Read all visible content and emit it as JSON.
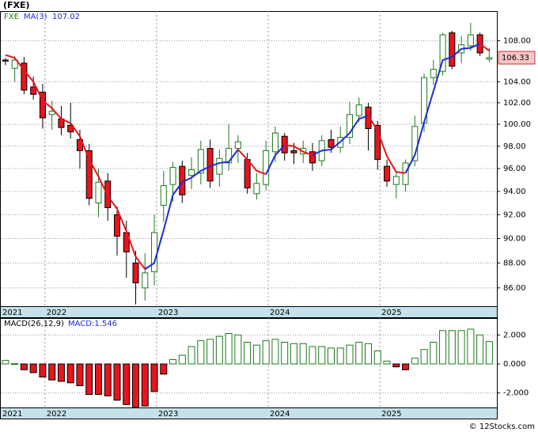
{
  "title": "(FXE)",
  "footer": "© 12Stocks.com",
  "chart_data": [
    {
      "type": "candlestick",
      "legend": {
        "symbol": "FXE",
        "ma_name": "MA(3)",
        "ma_value": 107.02
      },
      "categories": [
        "2021",
        null,
        null,
        null,
        null,
        "2022",
        null,
        null,
        null,
        null,
        null,
        null,
        null,
        null,
        null,
        null,
        null,
        "2023",
        null,
        null,
        null,
        null,
        null,
        null,
        null,
        null,
        null,
        null,
        null,
        "2024",
        null,
        null,
        null,
        null,
        null,
        null,
        null,
        null,
        null,
        null,
        null,
        "2025",
        null,
        null,
        null,
        null,
        null,
        null,
        null,
        null,
        null,
        null,
        null
      ],
      "open": [
        106.1,
        105.3,
        105.8,
        103.5,
        103.0,
        100.9,
        100.5,
        99.9,
        98.6,
        97.6,
        93.0,
        94.9,
        92.0,
        90.5,
        88.0,
        86.0,
        87.3,
        92.8,
        94.6,
        96.2,
        95.4,
        95.6,
        97.8,
        95.5,
        96.5,
        97.8,
        96.8,
        93.8,
        94.6,
        97.5,
        98.9,
        97.6,
        97.3,
        97.5,
        96.7,
        98.6,
        97.9,
        98.8,
        100.8,
        101.6,
        99.9,
        96.2,
        94.6,
        94.6,
        96.7,
        100.1,
        104.4,
        105.0,
        108.8,
        106.8,
        107.5,
        108.6,
        106.2
      ],
      "high": [
        106.3,
        106.5,
        106.4,
        104.5,
        103.8,
        102.2,
        101.7,
        102.0,
        99.5,
        98.2,
        96.0,
        95.6,
        92.7,
        91.5,
        89.0,
        88.8,
        92.0,
        95.8,
        96.6,
        96.7,
        97.0,
        98.5,
        98.6,
        97.7,
        100.0,
        99.0,
        97.4,
        95.6,
        98.5,
        99.8,
        99.2,
        98.3,
        98.5,
        98.3,
        99.0,
        99.5,
        99.8,
        102.1,
        102.5,
        102.0,
        100.3,
        96.8,
        95.7,
        96.8,
        100.8,
        104.8,
        106.1,
        108.8,
        109.0,
        108.5,
        109.8,
        108.8,
        107.3
      ],
      "low": [
        105.6,
        104.0,
        102.8,
        102.3,
        99.6,
        99.5,
        99.0,
        98.7,
        96.0,
        92.8,
        91.8,
        91.5,
        88.6,
        86.8,
        84.7,
        85.0,
        86.2,
        91.4,
        93.1,
        93.0,
        94.2,
        94.6,
        94.3,
        94.4,
        95.8,
        96.5,
        93.8,
        93.3,
        94.1,
        96.6,
        96.7,
        96.4,
        96.5,
        95.8,
        96.2,
        97.4,
        97.4,
        98.2,
        100.2,
        97.6,
        95.9,
        94.4,
        93.4,
        94.0,
        96.2,
        99.3,
        103.7,
        104.6,
        105.2,
        105.8,
        107.0,
        106.5,
        105.9
      ],
      "close": [
        106.0,
        106.1,
        103.2,
        102.8,
        100.6,
        101.2,
        99.7,
        99.3,
        97.6,
        93.4,
        94.8,
        92.6,
        90.2,
        88.9,
        86.4,
        87.2,
        90.5,
        94.5,
        96.1,
        93.7,
        95.9,
        97.7,
        94.9,
        96.9,
        97.8,
        98.4,
        94.3,
        94.7,
        97.6,
        99.2,
        97.4,
        97.4,
        97.8,
        96.5,
        98.5,
        97.9,
        98.8,
        100.9,
        101.8,
        99.6,
        96.8,
        94.9,
        95.3,
        96.5,
        99.8,
        104.4,
        105.2,
        108.6,
        105.5,
        107.6,
        108.6,
        106.8,
        106.33
      ],
      "up_color": "#1e7a1e",
      "down_color": "#e8141c",
      "ma": {
        "values": [
          106.6,
          106.3,
          105.1,
          104.0,
          102.2,
          101.5,
          100.5,
          100.1,
          98.9,
          96.8,
          95.3,
          93.6,
          92.5,
          90.6,
          88.5,
          87.5,
          88.0,
          90.7,
          93.7,
          94.8,
          95.2,
          95.8,
          96.2,
          96.5,
          96.6,
          97.7,
          96.8,
          95.8,
          95.5,
          97.2,
          98.1,
          98.0,
          97.5,
          97.2,
          97.6,
          97.7,
          98.4,
          99.2,
          100.5,
          100.8,
          99.4,
          97.1,
          95.7,
          95.6,
          97.2,
          100.2,
          103.1,
          106.1,
          106.4,
          107.2,
          107.3,
          107.7,
          107.02
        ],
        "rising_color": "#1f2ad6",
        "falling_color": "#e8141c"
      },
      "log": true,
      "ylim": [
        84.56,
        111.0
      ],
      "yticks": [
        {
          "value": 86,
          "label": "86.00"
        },
        {
          "value": 88,
          "label": "88.00"
        },
        {
          "value": 90,
          "label": "90.00"
        },
        {
          "value": 92,
          "label": "92.00"
        },
        {
          "value": 94,
          "label": "94.00"
        },
        {
          "value": 96,
          "label": "96.00"
        },
        {
          "value": 98,
          "label": "98.00"
        },
        {
          "value": 100,
          "label": "100.00"
        },
        {
          "value": 102,
          "label": "102.00"
        },
        {
          "value": 104,
          "label": "104.00"
        },
        {
          "value": 108,
          "label": "108.00"
        }
      ],
      "last_price": 106.33,
      "grid": true
    },
    {
      "type": "histogram",
      "title": "MACD(26,12,9)",
      "legend_text": "MACD:1.546",
      "categories": [
        "2021",
        null,
        null,
        null,
        null,
        "2022",
        null,
        null,
        null,
        null,
        null,
        null,
        null,
        null,
        null,
        null,
        null,
        "2023",
        null,
        null,
        null,
        null,
        null,
        null,
        null,
        null,
        null,
        null,
        null,
        "2024",
        null,
        null,
        null,
        null,
        null,
        null,
        null,
        null,
        null,
        null,
        null,
        "2025",
        null,
        null,
        null,
        null,
        null,
        null,
        null,
        null,
        null,
        null,
        null
      ],
      "values": [
        0.25,
        0.02,
        -0.4,
        -0.6,
        -0.9,
        -1.1,
        -1.2,
        -1.3,
        -1.5,
        -2.1,
        -2.1,
        -2.2,
        -2.5,
        -2.8,
        -3.0,
        -2.9,
        -1.9,
        -0.7,
        0.3,
        0.6,
        1.2,
        1.6,
        1.7,
        1.9,
        2.1,
        2.0,
        1.5,
        1.3,
        1.6,
        1.7,
        1.5,
        1.4,
        1.4,
        1.2,
        1.2,
        1.1,
        1.1,
        1.3,
        1.5,
        1.4,
        0.9,
        0.2,
        -0.2,
        -0.4,
        0.4,
        1.0,
        1.5,
        2.3,
        2.3,
        2.3,
        2.4,
        2.0,
        1.546
      ],
      "up_color": "#1e7a1e",
      "down_color": "#e8141c",
      "ylim": [
        -3.0,
        3.0
      ],
      "yticks": [
        {
          "value": -2,
          "label": "-2.000"
        },
        {
          "value": 0,
          "label": "0.000"
        },
        {
          "value": 2,
          "label": "2.000"
        }
      ],
      "grid": true
    }
  ]
}
